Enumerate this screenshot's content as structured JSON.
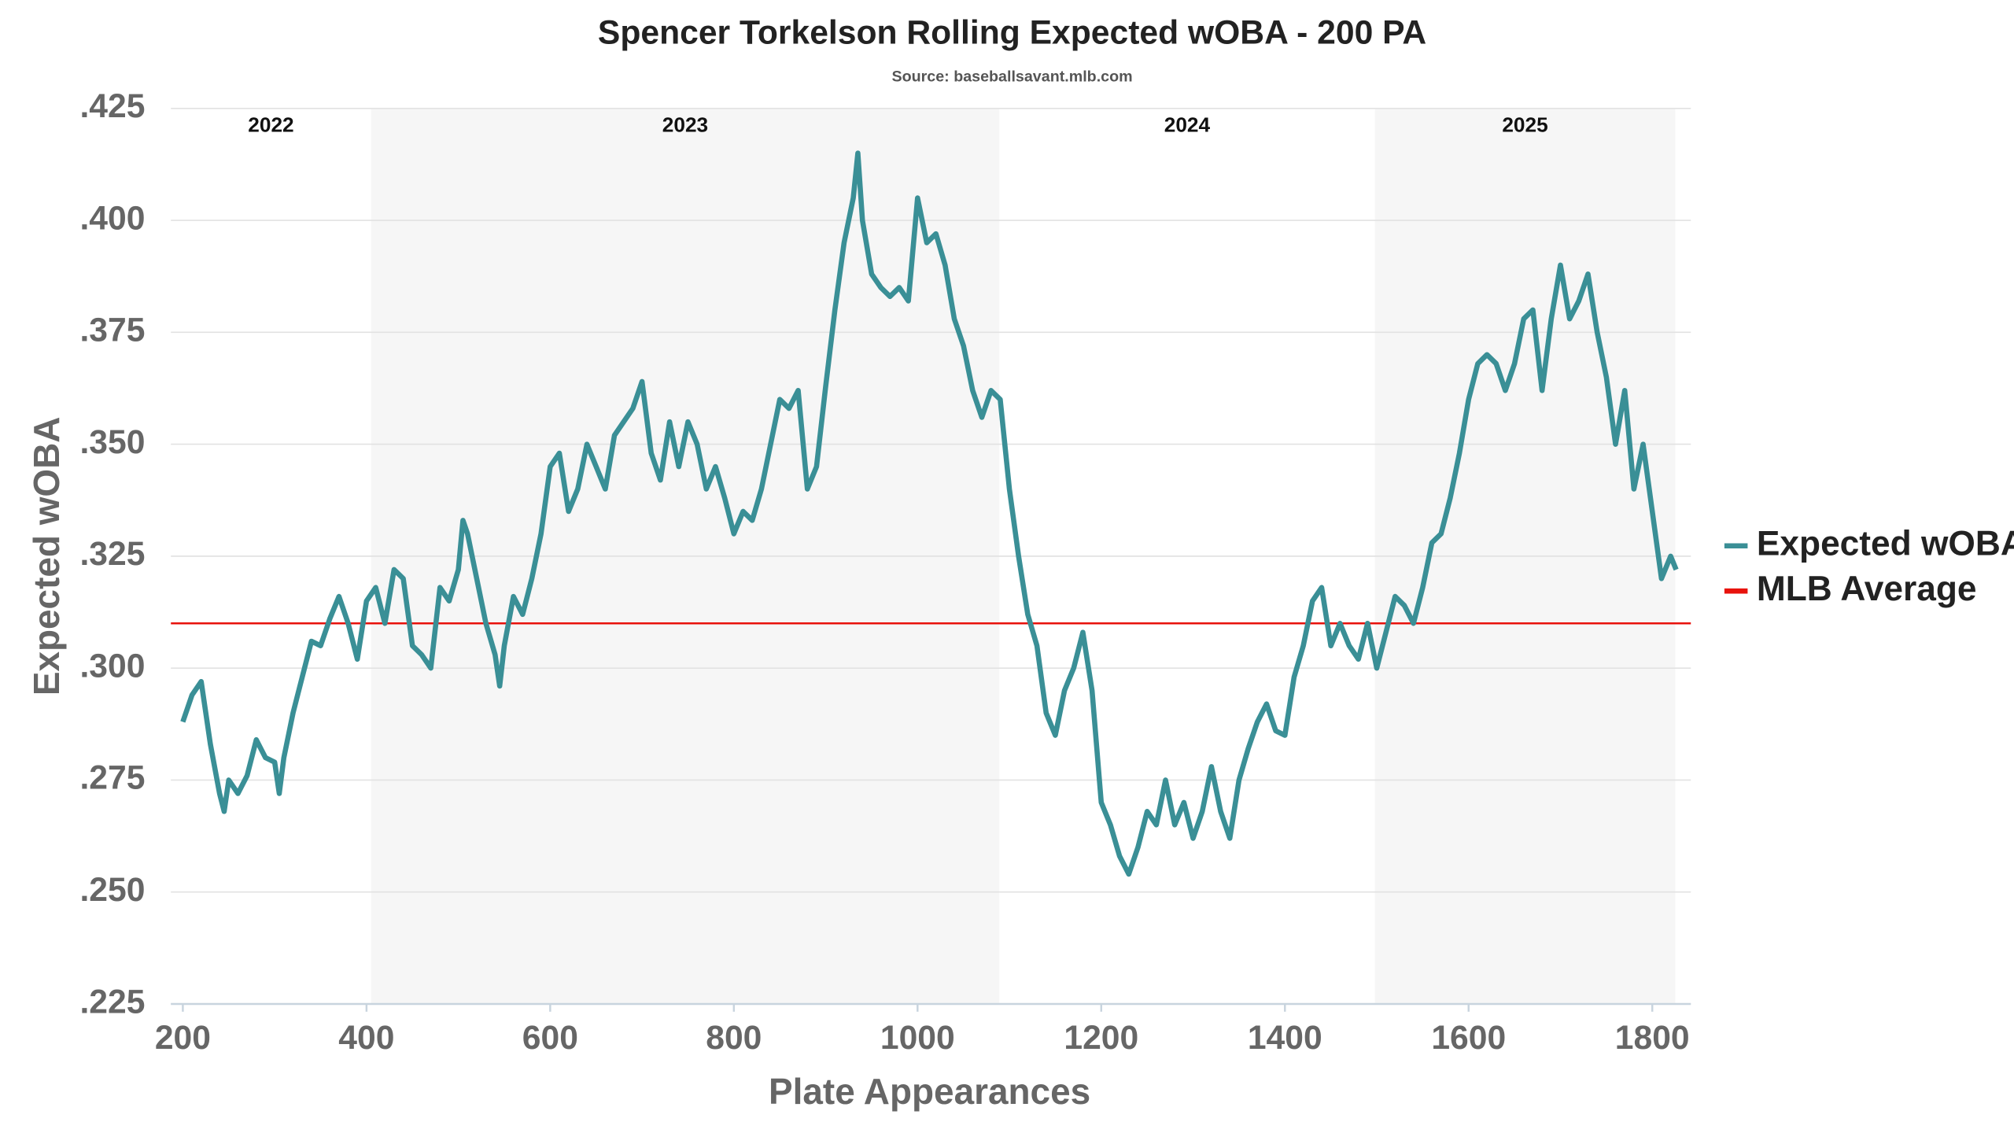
{
  "chart_data": {
    "type": "line",
    "title": "Spencer Torkelson Rolling Expected wOBA - 200 PA",
    "subtitle": "Source: baseballsavant.mlb.com",
    "xlabel": "Plate Appearances",
    "ylabel": "Expected wOBA",
    "xlim": [
      187,
      1842
    ],
    "ylim": [
      0.225,
      0.425
    ],
    "xticks": [
      200,
      400,
      600,
      800,
      1000,
      1200,
      1400,
      1600,
      1800
    ],
    "yticks": [
      {
        "value": 0.225,
        "label": ".225"
      },
      {
        "value": 0.25,
        "label": ".250"
      },
      {
        "value": 0.275,
        "label": ".275"
      },
      {
        "value": 0.3,
        "label": ".300"
      },
      {
        "value": 0.325,
        "label": ".325"
      },
      {
        "value": 0.35,
        "label": ".350"
      },
      {
        "value": 0.375,
        "label": ".375"
      },
      {
        "value": 0.4,
        "label": ".400"
      },
      {
        "value": 0.425,
        "label": ".425"
      }
    ],
    "grid": true,
    "legend": "right",
    "seasons": [
      {
        "label": "2022",
        "start": 187,
        "end": 405,
        "shaded": false
      },
      {
        "label": "2023",
        "start": 405,
        "end": 1089,
        "shaded": true
      },
      {
        "label": "2024",
        "start": 1089,
        "end": 1498,
        "shaded": false
      },
      {
        "label": "2025",
        "start": 1498,
        "end": 1825,
        "shaded": true
      }
    ],
    "reference_line": {
      "name": "MLB Average",
      "value": 0.31,
      "color": "#e8120c"
    },
    "x": [
      200,
      210,
      220,
      225,
      230,
      240,
      245,
      250,
      260,
      270,
      280,
      290,
      300,
      305,
      310,
      320,
      330,
      340,
      350,
      360,
      370,
      380,
      390,
      400,
      410,
      420,
      430,
      440,
      450,
      460,
      470,
      480,
      490,
      500,
      505,
      510,
      520,
      530,
      540,
      545,
      550,
      560,
      570,
      580,
      590,
      600,
      610,
      620,
      630,
      640,
      650,
      660,
      670,
      680,
      690,
      700,
      710,
      720,
      730,
      740,
      750,
      760,
      770,
      780,
      790,
      800,
      810,
      820,
      830,
      840,
      850,
      860,
      870,
      880,
      890,
      900,
      910,
      920,
      930,
      935,
      940,
      950,
      960,
      970,
      980,
      990,
      1000,
      1010,
      1020,
      1030,
      1040,
      1050,
      1060,
      1070,
      1080,
      1090,
      1100,
      1110,
      1120,
      1130,
      1140,
      1150,
      1160,
      1170,
      1180,
      1190,
      1200,
      1210,
      1220,
      1230,
      1240,
      1250,
      1260,
      1270,
      1280,
      1290,
      1300,
      1310,
      1320,
      1330,
      1340,
      1350,
      1360,
      1370,
      1380,
      1390,
      1400,
      1410,
      1420,
      1430,
      1440,
      1450,
      1460,
      1470,
      1480,
      1490,
      1500,
      1510,
      1520,
      1530,
      1540,
      1550,
      1560,
      1570,
      1580,
      1590,
      1600,
      1610,
      1620,
      1630,
      1640,
      1650,
      1660,
      1670,
      1680,
      1690,
      1700,
      1710,
      1720,
      1730,
      1740,
      1750,
      1760,
      1770,
      1780,
      1790,
      1800,
      1810,
      1820,
      1826
    ],
    "series": [
      {
        "name": "Expected wOBA",
        "color": "#3a8f96",
        "values": [
          0.288,
          0.294,
          0.297,
          0.29,
          0.283,
          0.272,
          0.268,
          0.275,
          0.272,
          0.276,
          0.284,
          0.28,
          0.279,
          0.272,
          0.28,
          0.29,
          0.298,
          0.306,
          0.305,
          0.311,
          0.316,
          0.31,
          0.302,
          0.315,
          0.318,
          0.31,
          0.322,
          0.32,
          0.305,
          0.303,
          0.3,
          0.318,
          0.315,
          0.322,
          0.333,
          0.33,
          0.32,
          0.31,
          0.303,
          0.296,
          0.305,
          0.316,
          0.312,
          0.32,
          0.33,
          0.345,
          0.348,
          0.335,
          0.34,
          0.35,
          0.345,
          0.34,
          0.352,
          0.355,
          0.358,
          0.364,
          0.348,
          0.342,
          0.355,
          0.345,
          0.355,
          0.35,
          0.34,
          0.345,
          0.338,
          0.33,
          0.335,
          0.333,
          0.34,
          0.35,
          0.36,
          0.358,
          0.362,
          0.34,
          0.345,
          0.363,
          0.38,
          0.395,
          0.405,
          0.415,
          0.4,
          0.388,
          0.385,
          0.383,
          0.385,
          0.382,
          0.405,
          0.395,
          0.397,
          0.39,
          0.378,
          0.372,
          0.362,
          0.356,
          0.362,
          0.36,
          0.34,
          0.325,
          0.312,
          0.305,
          0.29,
          0.285,
          0.295,
          0.3,
          0.308,
          0.295,
          0.27,
          0.265,
          0.258,
          0.254,
          0.26,
          0.268,
          0.265,
          0.275,
          0.265,
          0.27,
          0.262,
          0.268,
          0.278,
          0.268,
          0.262,
          0.275,
          0.282,
          0.288,
          0.292,
          0.286,
          0.285,
          0.298,
          0.305,
          0.315,
          0.318,
          0.305,
          0.31,
          0.305,
          0.302,
          0.31,
          0.3,
          0.308,
          0.316,
          0.314,
          0.31,
          0.318,
          0.328,
          0.33,
          0.338,
          0.348,
          0.36,
          0.368,
          0.37,
          0.368,
          0.362,
          0.368,
          0.378,
          0.38,
          0.362,
          0.378,
          0.39,
          0.378,
          0.382,
          0.388,
          0.375,
          0.365,
          0.35,
          0.362,
          0.34,
          0.35,
          0.335,
          0.32,
          0.325,
          0.322
        ]
      }
    ]
  }
}
